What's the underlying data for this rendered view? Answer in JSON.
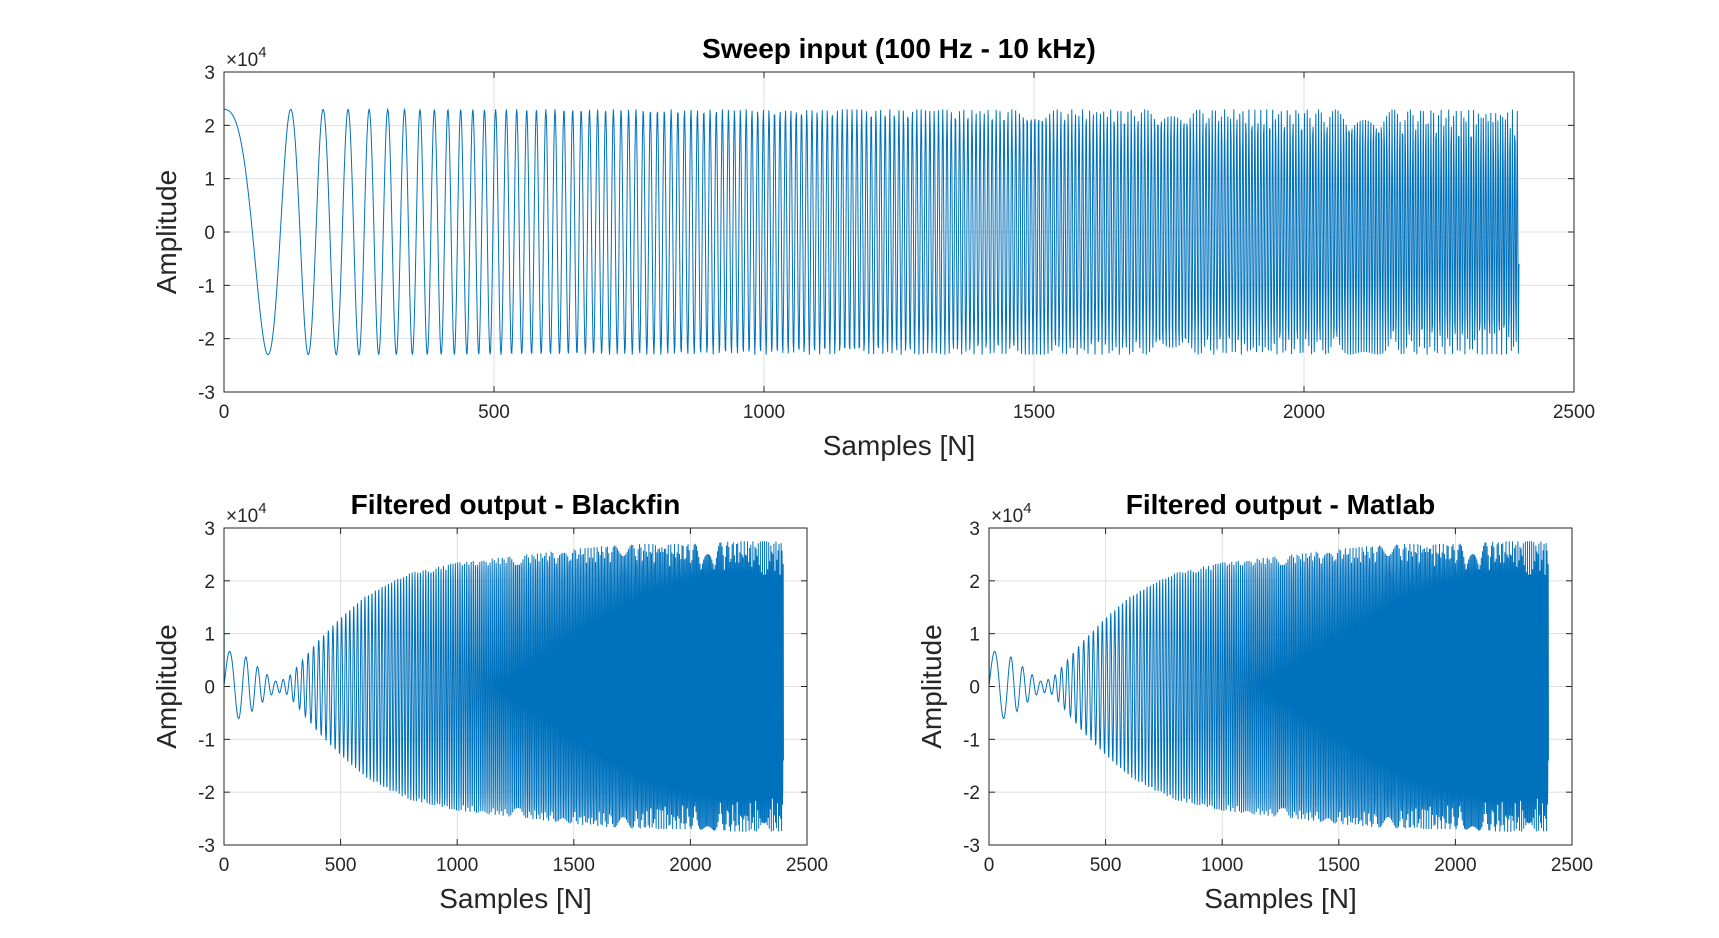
{
  "chart_data": [
    {
      "type": "line",
      "title": "Sweep input (100 Hz - 10 kHz)",
      "xlabel": "Samples [N]",
      "ylabel": "Amplitude",
      "exponent_label": "×10",
      "exponent_power": "4",
      "xlim": [
        0,
        2500
      ],
      "ylim": [
        -30000,
        30000
      ],
      "xticks": [
        0,
        500,
        1000,
        1500,
        2000,
        2500
      ],
      "xtick_labels": [
        "0",
        "500",
        "1000",
        "1500",
        "2000",
        "2500"
      ],
      "yticks": [
        -30000,
        -20000,
        -10000,
        0,
        10000,
        20000,
        30000
      ],
      "ytick_labels": [
        "-3",
        "-2",
        "-1",
        "0",
        "1",
        "2",
        "3"
      ],
      "grid": true,
      "series": [
        {
          "color": "#0072BD",
          "signal": "linear chirp sweep",
          "n_samples": 2400,
          "amplitude": 23000,
          "initial_value": 23000,
          "final_value": -6000,
          "cycles_per_sample_start": 0.0023,
          "cycles_per_sample_end": 0.227
        }
      ]
    },
    {
      "type": "line",
      "title": "Filtered output - Blackfin",
      "xlabel": "Samples [N]",
      "ylabel": "Amplitude",
      "exponent_label": "×10",
      "exponent_power": "4",
      "xlim": [
        0,
        2500
      ],
      "ylim": [
        -30000,
        30000
      ],
      "xticks": [
        0,
        500,
        1000,
        1500,
        2000,
        2500
      ],
      "xtick_labels": [
        "0",
        "500",
        "1000",
        "1500",
        "2000",
        "2500"
      ],
      "yticks": [
        -30000,
        -20000,
        -10000,
        0,
        10000,
        20000,
        30000
      ],
      "ytick_labels": [
        "-3",
        "-2",
        "-1",
        "0",
        "1",
        "2",
        "3"
      ],
      "grid": true,
      "series": [
        {
          "color": "#0072BD",
          "signal": "filtered sweep response",
          "n_samples": 2400,
          "initial_value": 23000,
          "final_value": -14000,
          "envelope": [
            [
              0,
              7000
            ],
            [
              100,
              5500
            ],
            [
              150,
              3500
            ],
            [
              220,
              1000
            ],
            [
              270,
              1500
            ],
            [
              300,
              3000
            ],
            [
              400,
              8500
            ],
            [
              500,
              13000
            ],
            [
              600,
              17000
            ],
            [
              700,
              19500
            ],
            [
              800,
              21500
            ],
            [
              1000,
              23500
            ],
            [
              1200,
              24500
            ],
            [
              1400,
              25500
            ],
            [
              1600,
              26500
            ],
            [
              1800,
              27000
            ],
            [
              2000,
              27000
            ],
            [
              2200,
              27500
            ],
            [
              2400,
              27500
            ]
          ]
        }
      ]
    },
    {
      "type": "line",
      "title": "Filtered output - Matlab",
      "xlabel": "Samples [N]",
      "ylabel": "Amplitude",
      "exponent_label": "×10",
      "exponent_power": "4",
      "xlim": [
        0,
        2500
      ],
      "ylim": [
        -30000,
        30000
      ],
      "xticks": [
        0,
        500,
        1000,
        1500,
        2000,
        2500
      ],
      "xtick_labels": [
        "0",
        "500",
        "1000",
        "1500",
        "2000",
        "2500"
      ],
      "yticks": [
        -30000,
        -20000,
        -10000,
        0,
        10000,
        20000,
        30000
      ],
      "ytick_labels": [
        "-3",
        "-2",
        "-1",
        "0",
        "1",
        "2",
        "3"
      ],
      "grid": true,
      "series": [
        {
          "color": "#0072BD",
          "signal": "filtered sweep response",
          "n_samples": 2400,
          "initial_value": 23000,
          "final_value": -14000,
          "envelope": [
            [
              0,
              7000
            ],
            [
              100,
              5500
            ],
            [
              150,
              3500
            ],
            [
              220,
              1000
            ],
            [
              270,
              1500
            ],
            [
              300,
              3000
            ],
            [
              400,
              8500
            ],
            [
              500,
              13000
            ],
            [
              600,
              17000
            ],
            [
              700,
              19500
            ],
            [
              800,
              21500
            ],
            [
              1000,
              23500
            ],
            [
              1200,
              24500
            ],
            [
              1400,
              25500
            ],
            [
              1600,
              26500
            ],
            [
              1800,
              27000
            ],
            [
              2000,
              27000
            ],
            [
              2200,
              27500
            ],
            [
              2400,
              27500
            ]
          ]
        }
      ]
    }
  ]
}
